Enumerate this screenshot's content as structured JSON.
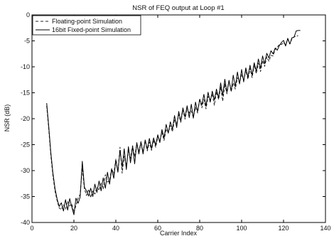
{
  "chart_data": {
    "type": "line",
    "title": "NSR of FEQ output at Loop #1",
    "xlabel": "Carrier Index",
    "ylabel": "NSR (dB)",
    "xlim": [
      0,
      140
    ],
    "ylim": [
      -40,
      0
    ],
    "xticks": [
      0,
      20,
      40,
      60,
      80,
      100,
      120,
      140
    ],
    "yticks": [
      0,
      -5,
      -10,
      -15,
      -20,
      -25,
      -30,
      -35,
      -40
    ],
    "grid": false,
    "legend_position": "top-left",
    "series": [
      {
        "name": "Floating-point Simulation",
        "style": "dashed",
        "color": "#222222",
        "x": [
          7,
          8,
          9,
          10,
          11,
          12,
          13,
          14,
          15,
          16,
          17,
          18,
          19,
          20,
          21,
          22,
          23,
          24,
          25,
          26,
          27,
          28,
          29,
          30,
          31,
          32,
          33,
          34,
          35,
          36,
          37,
          38,
          39,
          40,
          41,
          42,
          43,
          44,
          45,
          46,
          47,
          48,
          49,
          50,
          51,
          52,
          53,
          54,
          55,
          56,
          57,
          58,
          59,
          60,
          61,
          62,
          63,
          64,
          65,
          66,
          67,
          68,
          69,
          70,
          71,
          72,
          73,
          74,
          75,
          76,
          77,
          78,
          79,
          80,
          81,
          82,
          83,
          84,
          85,
          86,
          87,
          88,
          89,
          90,
          91,
          92,
          93,
          94,
          95,
          96,
          97,
          98,
          99,
          100,
          101,
          102,
          103,
          104,
          105,
          106,
          107,
          108,
          109,
          110,
          111,
          112,
          113,
          114,
          115,
          116,
          117,
          118,
          119,
          120,
          121,
          122,
          123,
          124,
          125,
          126,
          127
        ],
        "y": [
          -17.5,
          -22,
          -27,
          -31,
          -34,
          -35.8,
          -37.2,
          -37.5,
          -36.6,
          -37.4,
          -35.9,
          -36.8,
          -36.4,
          -38.1,
          -36.7,
          -35.3,
          -34.6,
          -29.5,
          -33.5,
          -34.8,
          -33.6,
          -35.2,
          -33.9,
          -34.5,
          -33.2,
          -33.8,
          -32.4,
          -33.5,
          -30.8,
          -32.2,
          -31.9,
          -29.6,
          -30.7,
          -27.8,
          -30.2,
          -25.5,
          -30.5,
          -27.2,
          -29.1,
          -26.1,
          -27.6,
          -25.2,
          -27.3,
          -24.8,
          -26.4,
          -24.4,
          -26.4,
          -24.2,
          -26.2,
          -24.5,
          -26.1,
          -24.1,
          -25.5,
          -23.5,
          -24.2,
          -22.6,
          -24.2,
          -22.0,
          -22.6,
          -21.3,
          -22.5,
          -20.1,
          -21.0,
          -19.2,
          -20.7,
          -18.3,
          -20.1,
          -17.9,
          -18.9,
          -18.5,
          -19.7,
          -17.8,
          -18.9,
          -16.1,
          -17.9,
          -16.3,
          -18.1,
          -15.7,
          -16.4,
          -15.2,
          -17.4,
          -14.8,
          -16.3,
          -13.9,
          -16.6,
          -13.3,
          -15.2,
          -12.7,
          -14.7,
          -13.1,
          -14.3,
          -12.1,
          -13.1,
          -11.4,
          -12.6,
          -10.7,
          -12.4,
          -10.3,
          -12.1,
          -9.6,
          -11.3,
          -9.3,
          -10.9,
          -8.8,
          -9.9,
          -8.1,
          -8.9,
          -7.8,
          -7.9,
          -6.6,
          -6.2,
          -5.7,
          -5.7,
          -5.3,
          -5.8,
          -4.7,
          -5.6,
          -4.6,
          -4.2,
          -4.1,
          -4.0
        ]
      },
      {
        "name": "16bit Fixed-point Simulation",
        "style": "solid",
        "color": "#000000",
        "x": [
          7,
          8,
          9,
          10,
          11,
          12,
          13,
          14,
          15,
          16,
          17,
          18,
          19,
          20,
          21,
          22,
          23,
          24,
          25,
          26,
          27,
          28,
          29,
          30,
          31,
          32,
          33,
          34,
          35,
          36,
          37,
          38,
          39,
          40,
          41,
          42,
          43,
          44,
          45,
          46,
          47,
          48,
          49,
          50,
          51,
          52,
          53,
          54,
          55,
          56,
          57,
          58,
          59,
          60,
          61,
          62,
          63,
          64,
          65,
          66,
          67,
          68,
          69,
          70,
          71,
          72,
          73,
          74,
          75,
          76,
          77,
          78,
          79,
          80,
          81,
          82,
          83,
          84,
          85,
          86,
          87,
          88,
          89,
          90,
          91,
          92,
          93,
          94,
          95,
          96,
          97,
          98,
          99,
          100,
          101,
          102,
          103,
          104,
          105,
          106,
          107,
          108,
          109,
          110,
          111,
          112,
          113,
          114,
          115,
          116,
          117,
          118,
          119,
          120,
          121,
          122,
          123,
          124,
          125,
          126,
          127,
          128
        ],
        "y": [
          -17.0,
          -21.5,
          -26.5,
          -30.5,
          -33.5,
          -35.5,
          -36.9,
          -36.2,
          -37.8,
          -35.6,
          -37.6,
          -35.4,
          -37.0,
          -38.5,
          -35.3,
          -36.3,
          -35.1,
          -28.2,
          -33.2,
          -33.9,
          -34.9,
          -33.4,
          -35.0,
          -32.6,
          -34.2,
          -32.0,
          -33.9,
          -31.4,
          -33.4,
          -30.3,
          -32.6,
          -29.7,
          -31.5,
          -28.0,
          -30.3,
          -26.1,
          -29.3,
          -25.8,
          -29.8,
          -25.4,
          -28.5,
          -25.3,
          -28.7,
          -24.6,
          -26.8,
          -24.5,
          -26.8,
          -24.1,
          -25.9,
          -23.8,
          -25.8,
          -23.7,
          -25.1,
          -23.1,
          -24.6,
          -22.1,
          -23.7,
          -21.1,
          -22.8,
          -20.6,
          -22.0,
          -19.4,
          -21.7,
          -18.6,
          -20.5,
          -17.9,
          -19.7,
          -17.5,
          -19.8,
          -17.2,
          -19.9,
          -16.8,
          -18.6,
          -16.4,
          -17.3,
          -15.3,
          -17.6,
          -14.9,
          -16.8,
          -14.7,
          -16.4,
          -14.3,
          -16.0,
          -13.1,
          -15.5,
          -12.4,
          -14.9,
          -12.6,
          -14.7,
          -11.6,
          -13.8,
          -11.0,
          -13.3,
          -10.5,
          -12.9,
          -10.2,
          -12.0,
          -9.7,
          -11.6,
          -9.2,
          -10.8,
          -8.5,
          -10.3,
          -7.9,
          -9.4,
          -7.4,
          -8.3,
          -6.9,
          -7.5,
          -6.4,
          -6.8,
          -5.9,
          -5.3,
          -4.9,
          -6.0,
          -4.5,
          -5.6,
          -4.4,
          -4.3,
          -3.1,
          -3.0,
          -3.0
        ]
      }
    ]
  }
}
